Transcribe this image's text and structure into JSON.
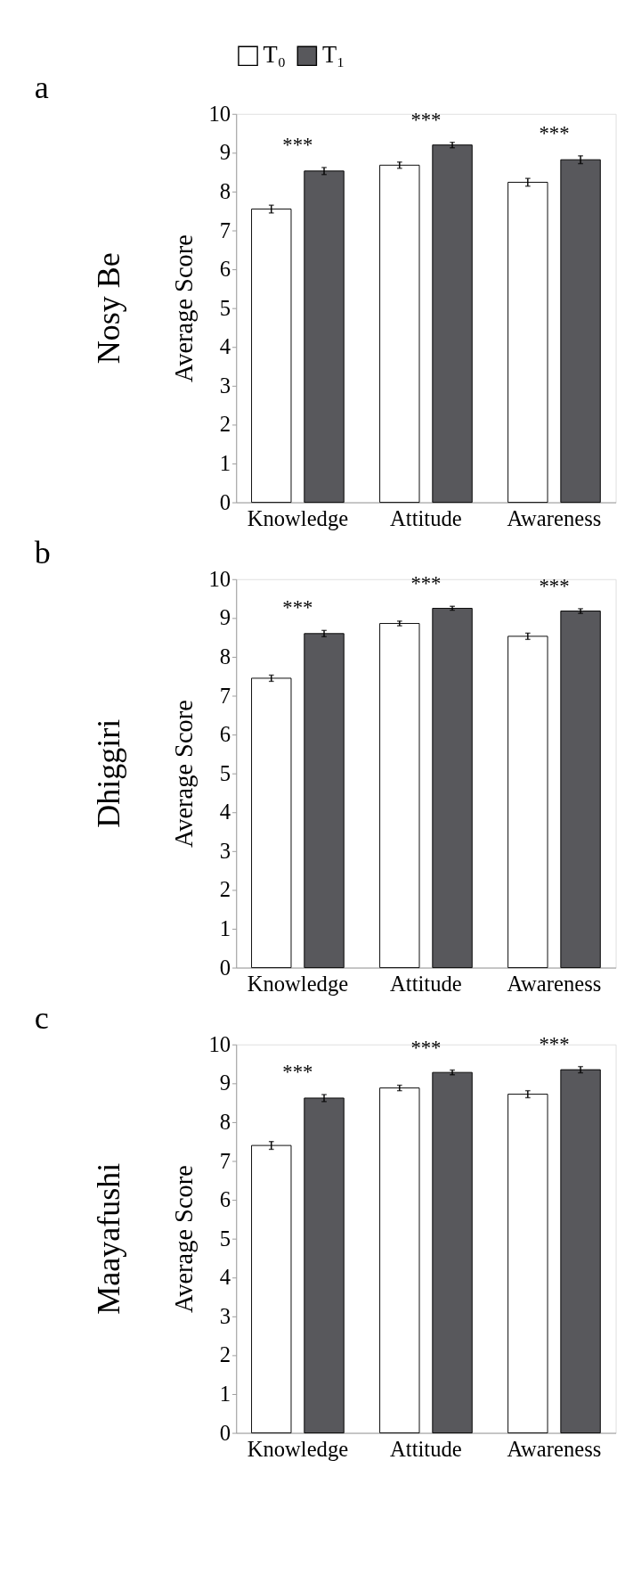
{
  "chart_data": [
    {
      "type": "bar",
      "title": "a",
      "subtitle": "Nosy Be",
      "ylabel": "Average Score",
      "categories": [
        "Knowledge",
        "Attitude",
        "Awareness"
      ],
      "series": [
        {
          "name": "T₀",
          "color": "#ffffff",
          "values": [
            7.55,
            8.68,
            8.24
          ],
          "errors": [
            0.1,
            0.08,
            0.1
          ]
        },
        {
          "name": "T₁",
          "color": "#58585c",
          "values": [
            8.53,
            9.2,
            8.82
          ],
          "errors": [
            0.09,
            0.07,
            0.1
          ]
        }
      ],
      "ylim": [
        0,
        10
      ],
      "yticks": [
        0,
        1,
        2,
        3,
        4,
        5,
        6,
        7,
        8,
        9,
        10
      ],
      "grid": false,
      "legend": "top",
      "annotations": [
        "***",
        "***",
        "***"
      ]
    },
    {
      "type": "bar",
      "title": "b",
      "subtitle": "Dhiggiri",
      "ylabel": "Average Score",
      "categories": [
        "Knowledge",
        "Attitude",
        "Awareness"
      ],
      "series": [
        {
          "name": "T₀",
          "color": "#ffffff",
          "values": [
            7.45,
            8.86,
            8.53
          ],
          "errors": [
            0.08,
            0.06,
            0.08
          ]
        },
        {
          "name": "T₁",
          "color": "#58585c",
          "values": [
            8.6,
            9.25,
            9.18
          ],
          "errors": [
            0.08,
            0.05,
            0.06
          ]
        }
      ],
      "ylim": [
        0,
        10
      ],
      "yticks": [
        0,
        1,
        2,
        3,
        4,
        5,
        6,
        7,
        8,
        9,
        10
      ],
      "grid": false,
      "legend": false,
      "annotations": [
        "***",
        "***",
        "***"
      ]
    },
    {
      "type": "bar",
      "title": "c",
      "subtitle": "Maayafushi",
      "ylabel": "Average Score",
      "categories": [
        "Knowledge",
        "Attitude",
        "Awareness"
      ],
      "series": [
        {
          "name": "T₀",
          "color": "#ffffff",
          "values": [
            7.4,
            8.88,
            8.72
          ],
          "errors": [
            0.1,
            0.07,
            0.09
          ]
        },
        {
          "name": "T₁",
          "color": "#58585c",
          "values": [
            8.62,
            9.28,
            9.35
          ],
          "errors": [
            0.09,
            0.06,
            0.08
          ]
        }
      ],
      "ylim": [
        0,
        10
      ],
      "yticks": [
        0,
        1,
        2,
        3,
        4,
        5,
        6,
        7,
        8,
        9,
        10
      ],
      "grid": false,
      "legend": false,
      "annotations": [
        "***",
        "***",
        "***"
      ]
    }
  ]
}
